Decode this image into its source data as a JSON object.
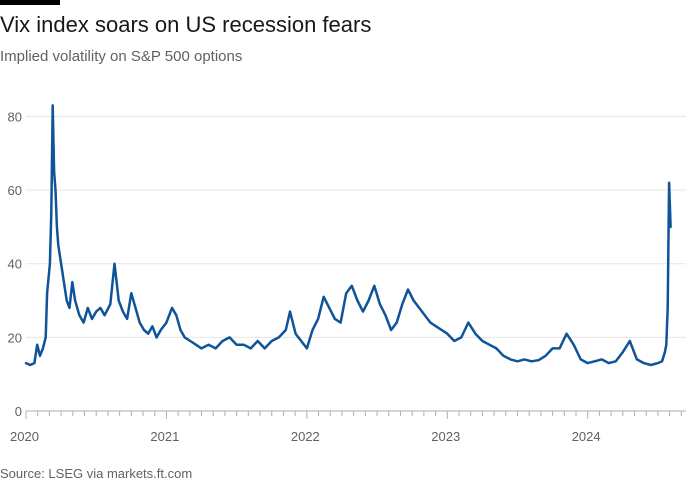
{
  "header": {
    "title": "Vix index soars on US recession fears",
    "subtitle": "Implied volatility on S&P 500 options"
  },
  "footer": {
    "source": "Source: LSEG via markets.ft.com"
  },
  "colors": {
    "line": "#0f5499",
    "grid": "#e9e5e3",
    "axis": "#b3aea9",
    "brand": "#000000"
  },
  "chart_data": {
    "type": "line",
    "title": "Vix index soars on US recession fears",
    "subtitle": "Implied volatility on S&P 500 options",
    "xlabel": "",
    "ylabel": "",
    "xlim": [
      2020.0,
      2024.7
    ],
    "ylim": [
      0,
      85
    ],
    "yticks": [
      0,
      20,
      40,
      60,
      80
    ],
    "xticks": [
      {
        "value": 2020,
        "label": "2020"
      },
      {
        "value": 2021,
        "label": "2021"
      },
      {
        "value": 2022,
        "label": "2022"
      },
      {
        "value": 2023,
        "label": "2023"
      },
      {
        "value": 2024,
        "label": "2024"
      }
    ],
    "grid": true,
    "series": [
      {
        "name": "",
        "x": [
          2020.0,
          2020.03,
          2020.06,
          2020.08,
          2020.1,
          2020.12,
          2020.14,
          2020.15,
          2020.17,
          2020.18,
          2020.19,
          2020.2,
          2020.21,
          2020.22,
          2020.23,
          2020.25,
          2020.27,
          2020.29,
          2020.31,
          2020.33,
          2020.35,
          2020.38,
          2020.41,
          2020.44,
          2020.47,
          2020.5,
          2020.53,
          2020.56,
          2020.6,
          2020.63,
          2020.66,
          2020.69,
          2020.72,
          2020.75,
          2020.78,
          2020.81,
          2020.84,
          2020.87,
          2020.9,
          2020.93,
          2020.96,
          2021.0,
          2021.04,
          2021.07,
          2021.1,
          2021.13,
          2021.17,
          2021.21,
          2021.25,
          2021.3,
          2021.35,
          2021.4,
          2021.45,
          2021.5,
          2021.55,
          2021.6,
          2021.65,
          2021.7,
          2021.75,
          2021.8,
          2021.85,
          2021.88,
          2021.92,
          2021.96,
          2022.0,
          2022.04,
          2022.08,
          2022.12,
          2022.16,
          2022.2,
          2022.24,
          2022.28,
          2022.32,
          2022.36,
          2022.4,
          2022.44,
          2022.48,
          2022.52,
          2022.56,
          2022.6,
          2022.64,
          2022.68,
          2022.72,
          2022.76,
          2022.8,
          2022.84,
          2022.88,
          2022.92,
          2022.96,
          2023.0,
          2023.05,
          2023.1,
          2023.15,
          2023.2,
          2023.25,
          2023.3,
          2023.35,
          2023.4,
          2023.45,
          2023.5,
          2023.55,
          2023.6,
          2023.65,
          2023.7,
          2023.75,
          2023.8,
          2023.85,
          2023.9,
          2023.95,
          2024.0,
          2024.05,
          2024.1,
          2024.15,
          2024.2,
          2024.25,
          2024.3,
          2024.35,
          2024.4,
          2024.45,
          2024.5,
          2024.53,
          2024.55,
          2024.56,
          2024.57,
          2024.58,
          2024.59
        ],
        "values": [
          13,
          12.5,
          13,
          18,
          15,
          17,
          20,
          32,
          40,
          54,
          83,
          65,
          60,
          50,
          45,
          40,
          35,
          30,
          28,
          35,
          30,
          26,
          24,
          28,
          25,
          27,
          28,
          26,
          29,
          40,
          30,
          27,
          25,
          32,
          28,
          24,
          22,
          21,
          23,
          20,
          22,
          24,
          28,
          26,
          22,
          20,
          19,
          18,
          17,
          18,
          17,
          19,
          20,
          18,
          18,
          17,
          19,
          17,
          19,
          20,
          22,
          27,
          21,
          19,
          17,
          22,
          25,
          31,
          28,
          25,
          24,
          32,
          34,
          30,
          27,
          30,
          34,
          29,
          26,
          22,
          24,
          29,
          33,
          30,
          28,
          26,
          24,
          23,
          22,
          21,
          19,
          20,
          24,
          21,
          19,
          18,
          17,
          15,
          14,
          13.5,
          14,
          13.5,
          13.8,
          15,
          17,
          17,
          21,
          18,
          14,
          13,
          13.5,
          14,
          13,
          13.5,
          16,
          19,
          14,
          13,
          12.5,
          13,
          13.5,
          16,
          18,
          28,
          62,
          50
        ]
      }
    ]
  }
}
